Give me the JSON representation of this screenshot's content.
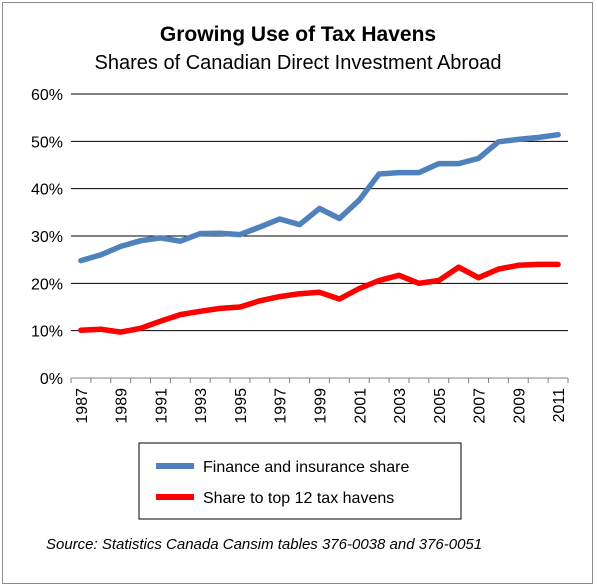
{
  "chart_data": {
    "type": "line",
    "title": "Growing Use of Tax Havens",
    "subtitle": "Shares of Canadian Direct Investment Abroad",
    "x": [
      1987,
      1988,
      1989,
      1990,
      1991,
      1992,
      1993,
      1994,
      1995,
      1996,
      1997,
      1998,
      1999,
      2000,
      2001,
      2002,
      2003,
      2004,
      2005,
      2006,
      2007,
      2008,
      2009,
      2010,
      2011
    ],
    "x_tick_labels": [
      "1987",
      "1989",
      "1991",
      "1993",
      "1995",
      "1997",
      "1999",
      "2001",
      "2003",
      "2005",
      "2007",
      "2009",
      "2011"
    ],
    "y_tick_labels": [
      "0%",
      "10%",
      "20%",
      "30%",
      "40%",
      "50%",
      "60%"
    ],
    "ylim": [
      0,
      60
    ],
    "grid": "horizontal",
    "legend_position": "bottom",
    "series": [
      {
        "name": "Finance and insurance share",
        "color": "#4f81bd",
        "values": [
          24.8,
          26.0,
          27.8,
          29.0,
          29.6,
          28.9,
          30.5,
          30.6,
          30.3,
          31.9,
          33.6,
          32.4,
          35.8,
          33.7,
          37.6,
          43.1,
          43.4,
          43.4,
          45.3,
          45.3,
          46.4,
          49.9,
          50.4,
          50.8,
          51.4
        ]
      },
      {
        "name": "Share to top 12 tax havens",
        "color": "#ff0000",
        "values": [
          10.1,
          10.3,
          9.7,
          10.5,
          12.0,
          13.4,
          14.1,
          14.7,
          15.0,
          16.3,
          17.2,
          17.8,
          18.1,
          16.7,
          18.9,
          20.6,
          21.7,
          20.0,
          20.6,
          23.4,
          21.2,
          23.0,
          23.8,
          24.0,
          24.0
        ]
      }
    ],
    "source": "Source:  Statistics Canada Cansim tables 376-0038 and 376-0051"
  }
}
